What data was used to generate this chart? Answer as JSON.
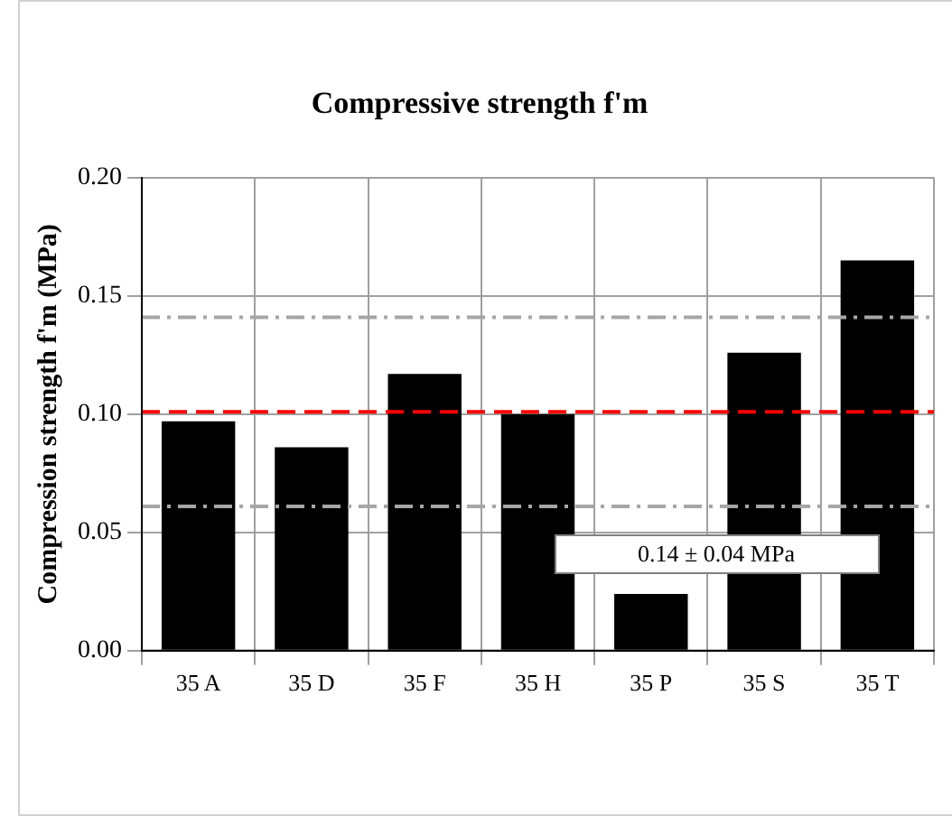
{
  "chart_data": {
    "type": "bar",
    "title": "Compressive strength f'm",
    "ylabel": "Compression strength f'm (MPa)",
    "categories": [
      "35 A",
      "35 D",
      "35 F",
      "35 H",
      "35 P",
      "35 S",
      "35 T"
    ],
    "values": [
      0.097,
      0.086,
      0.117,
      0.1,
      0.024,
      0.126,
      0.165
    ],
    "color": "#000000",
    "ylim": [
      0,
      0.2
    ],
    "yticks": [
      {
        "value": 0,
        "label": "0.00"
      },
      {
        "value": 0.05,
        "label": "0.05"
      },
      {
        "value": 0.1,
        "label": "0.10"
      },
      {
        "value": 0.15,
        "label": "0.15"
      },
      {
        "value": 0.2,
        "label": "0.20"
      }
    ],
    "grid": true,
    "legend": false,
    "ref_lines": [
      {
        "axis": "y",
        "value": 0.101,
        "color": "#ff0000",
        "line_style": "dashed"
      },
      {
        "axis": "y",
        "value": 0.141,
        "color": "#a6a6a6",
        "line_style": "dashdot"
      },
      {
        "axis": "y",
        "value": 0.061,
        "color": "#a6a6a6",
        "line_style": "dashdot"
      }
    ],
    "annotations": [
      "0.14 ± 0.04 MPa"
    ]
  }
}
